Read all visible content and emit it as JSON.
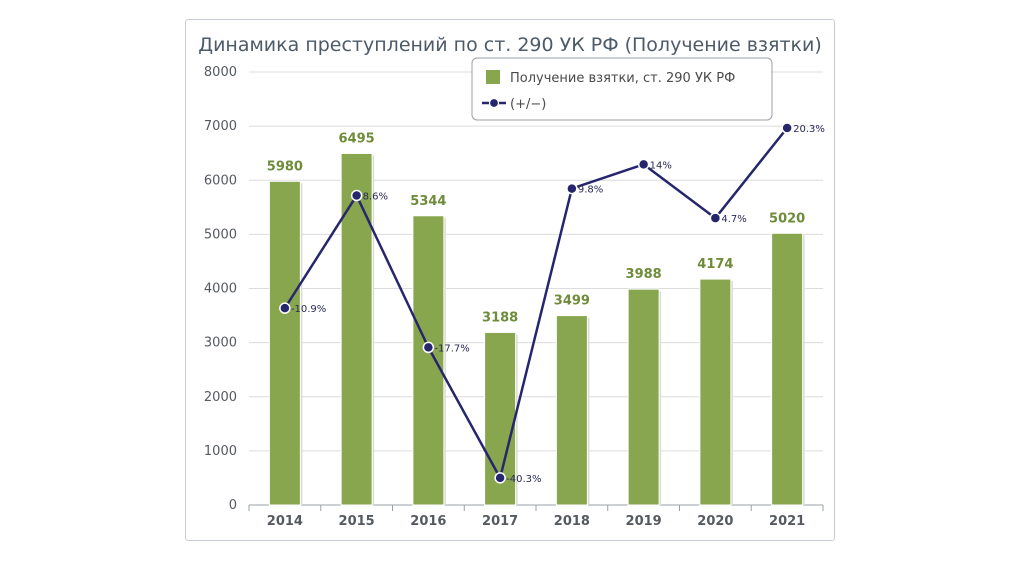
{
  "chart_data": {
    "type": "bar",
    "title": "Динамика преступлений по ст. 290 УК РФ (Получение взятки)",
    "categories": [
      "2014",
      "2015",
      "2016",
      "2017",
      "2018",
      "2019",
      "2020",
      "2021"
    ],
    "series": [
      {
        "name": "Получение взятки, ст. 290 УК РФ",
        "type": "bar",
        "values": [
          5980,
          6495,
          5344,
          3188,
          3499,
          3988,
          4174,
          5020
        ],
        "labels": [
          "5980",
          "6495",
          "5344",
          "3188",
          "3499",
          "3988",
          "4174",
          "5020"
        ],
        "color": "#88a64e"
      },
      {
        "name": "(+/−)",
        "type": "line",
        "values": [
          -10.9,
          8.6,
          -17.7,
          -40.3,
          9.8,
          14,
          4.7,
          20.3
        ],
        "labels": [
          "-10.9%",
          "8.6%",
          "-17.7%",
          "-40.3%",
          "9.8%",
          "14%",
          "4.7%",
          "20.3%"
        ],
        "color": "#26266e"
      }
    ],
    "ylim": [
      0,
      8000
    ],
    "yticks": [
      "0",
      "1000",
      "2000",
      "3000",
      "4000",
      "5000",
      "6000",
      "7000",
      "8000"
    ],
    "secondary_ylim": [
      -45,
      30
    ],
    "grid": true,
    "legend_position": "top-right"
  }
}
